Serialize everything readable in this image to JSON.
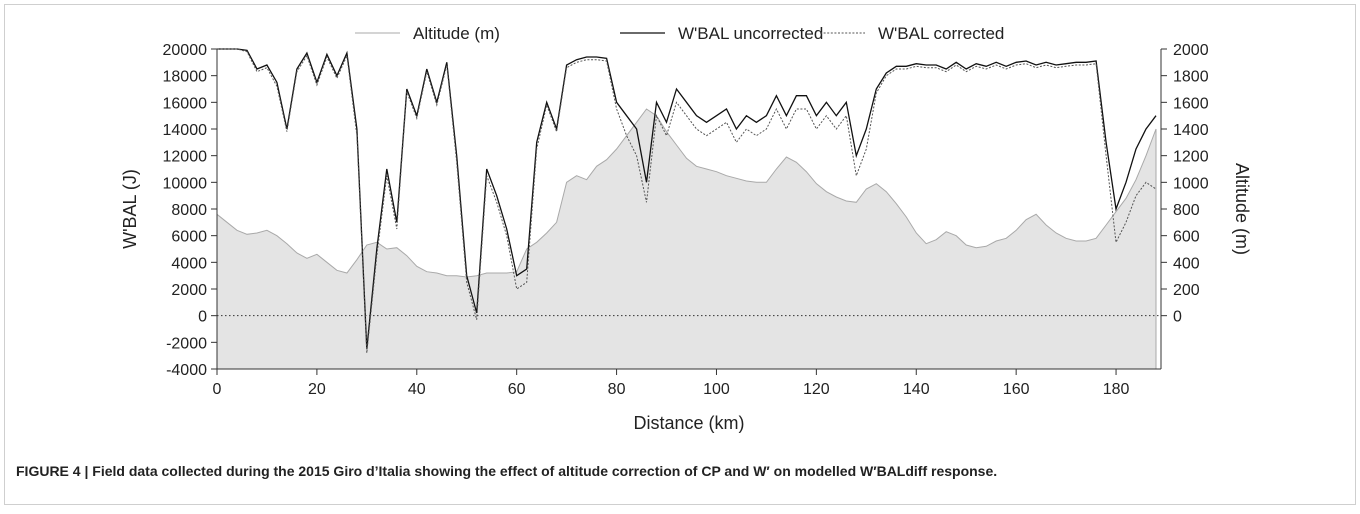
{
  "chart_data": {
    "type": "line",
    "x_label": "Distance (km)",
    "y_label": "W'BAL (J)",
    "y2_label": "Altitude (m)",
    "caption": "FIGURE 4 | Field data collected during the 2015 Giro d’Italia showing the effect of altitude correction of CP and W′ on modelled W′BALdiff response.",
    "x": [
      0,
      2,
      4,
      6,
      8,
      10,
      12,
      14,
      16,
      18,
      20,
      22,
      24,
      26,
      28,
      30,
      32,
      34,
      36,
      38,
      40,
      42,
      44,
      46,
      48,
      50,
      52,
      54,
      56,
      58,
      60,
      62,
      64,
      66,
      68,
      70,
      72,
      74,
      76,
      78,
      80,
      82,
      84,
      86,
      88,
      90,
      92,
      94,
      96,
      98,
      100,
      102,
      104,
      106,
      108,
      110,
      112,
      114,
      116,
      118,
      120,
      122,
      124,
      126,
      128,
      130,
      132,
      134,
      136,
      138,
      140,
      142,
      144,
      146,
      148,
      150,
      152,
      154,
      156,
      158,
      160,
      162,
      164,
      166,
      168,
      170,
      172,
      174,
      176,
      178,
      180,
      182,
      184,
      186,
      188
    ],
    "series": [
      {
        "name": "Altitude (m)",
        "axis": "y2",
        "style": "area",
        "color": "#a9a9a9",
        "fill": "#e4e4e4",
        "values": [
          760,
          700,
          640,
          610,
          620,
          640,
          600,
          540,
          470,
          430,
          460,
          400,
          340,
          320,
          420,
          530,
          550,
          500,
          510,
          450,
          370,
          330,
          320,
          300,
          300,
          290,
          300,
          320,
          320,
          320,
          330,
          500,
          550,
          620,
          700,
          1000,
          1050,
          1020,
          1120,
          1170,
          1250,
          1350,
          1450,
          1550,
          1500,
          1380,
          1280,
          1180,
          1120,
          1100,
          1080,
          1050,
          1030,
          1010,
          1000,
          1000,
          1100,
          1190,
          1150,
          1080,
          990,
          930,
          890,
          860,
          850,
          950,
          990,
          930,
          840,
          740,
          620,
          540,
          570,
          630,
          600,
          530,
          510,
          520,
          560,
          580,
          640,
          720,
          760,
          680,
          620,
          580,
          560,
          560,
          580,
          680,
          780,
          880,
          1020,
          1200,
          1400
        ]
      },
      {
        "name": "W'BAL uncorrected",
        "style": "solid",
        "color": "#111111",
        "values": [
          20000,
          20000,
          20000,
          19900,
          18500,
          18800,
          17500,
          14000,
          18500,
          19700,
          17500,
          19600,
          18000,
          19700,
          14000,
          -2500,
          5000,
          11000,
          7000,
          17000,
          15000,
          18500,
          16000,
          19000,
          12000,
          3000,
          200,
          11000,
          9000,
          6500,
          3000,
          3500,
          13000,
          16000,
          14000,
          18800,
          19200,
          19400,
          19400,
          19300,
          16000,
          15000,
          14000,
          10000,
          16000,
          14500,
          17000,
          16000,
          15000,
          14500,
          15000,
          15500,
          14000,
          15000,
          14500,
          15000,
          16500,
          15000,
          16500,
          16500,
          15000,
          16000,
          15000,
          16000,
          12000,
          14000,
          17000,
          18200,
          18700,
          18700,
          18900,
          18800,
          18800,
          18500,
          19000,
          18500,
          18900,
          18700,
          19000,
          18700,
          19000,
          19100,
          18800,
          19000,
          18800,
          18900,
          19000,
          19000,
          19100,
          13000,
          8000,
          10000,
          12500,
          14000,
          15000
        ]
      },
      {
        "name": "W'BAL corrected",
        "style": "dotted",
        "color": "#555555",
        "values": [
          20000,
          20000,
          20000,
          19800,
          18300,
          18600,
          17200,
          13800,
          18300,
          19500,
          17300,
          19400,
          17800,
          19500,
          13500,
          -2800,
          4500,
          10500,
          6500,
          16800,
          14800,
          18300,
          15800,
          18800,
          11500,
          2500,
          -300,
          10500,
          8500,
          6000,
          2000,
          2500,
          12500,
          15800,
          13800,
          18600,
          19000,
          19200,
          19200,
          19100,
          15500,
          13500,
          12000,
          8500,
          15000,
          13500,
          16000,
          15000,
          14000,
          13500,
          14000,
          14500,
          13000,
          14000,
          13500,
          14000,
          15500,
          14000,
          15500,
          15500,
          14000,
          15000,
          14000,
          15000,
          10500,
          12500,
          16700,
          18000,
          18500,
          18500,
          18700,
          18600,
          18600,
          18300,
          18800,
          18300,
          18700,
          18500,
          18800,
          18500,
          18800,
          18900,
          18600,
          18800,
          18600,
          18700,
          18800,
          18800,
          18900,
          12000,
          5500,
          7000,
          9000,
          10000,
          9500
        ]
      }
    ],
    "xlim": [
      0,
      189
    ],
    "xticks": [
      0,
      20,
      40,
      60,
      80,
      100,
      120,
      140,
      160,
      180
    ],
    "ylim": [
      -4000,
      20000
    ],
    "yticks": [
      -4000,
      -2000,
      0,
      2000,
      4000,
      6000,
      8000,
      10000,
      12000,
      14000,
      16000,
      18000,
      20000
    ],
    "y2lim": [
      -400,
      2000
    ],
    "y2ticks": [
      0,
      200,
      400,
      600,
      800,
      1000,
      1200,
      1400,
      1600,
      1800,
      2000
    ],
    "reference_line": {
      "y": 0,
      "style": "dotted"
    },
    "legend": "top",
    "grid": false
  }
}
